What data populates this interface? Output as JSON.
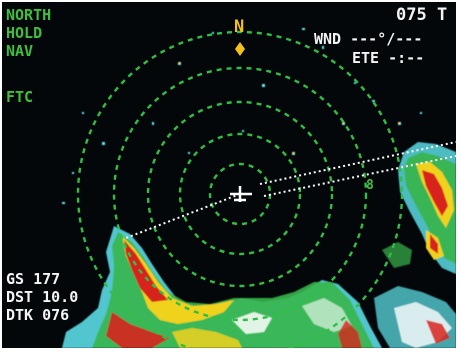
{
  "colors": {
    "screen_background": "#03070a",
    "mode_text": "#3fbf3a",
    "range_rings": "#2fbf45",
    "north_marker": "#f2c21a",
    "readout_text": "#f4f4f4",
    "weather_red": "#d8241c",
    "weather_yellow": "#f0d21c",
    "weather_green": "#37b54a",
    "weather_cyan": "#5fe8f0",
    "weather_white": "#ffffff"
  },
  "modes": {
    "line1": "NORTH",
    "line2": "HOLD",
    "line3": "NAV",
    "line4": "FTC"
  },
  "north": {
    "label": "N",
    "marker_icon": "diamond-icon"
  },
  "top_right": {
    "range": "075",
    "range_suffix": "T",
    "wind_label": "WND",
    "wind_value": "---°/---",
    "ete_label": "ETE",
    "ete_value": "-:--"
  },
  "nav": {
    "gs_label": "GS",
    "gs_value": "177",
    "dst_label": "DST",
    "dst_value": "10.0",
    "dtk_label": "DTK",
    "dtk_value": "076"
  },
  "route": {
    "waypoint_label": "8",
    "aircraft_icon": "aircraft-cross-icon"
  }
}
